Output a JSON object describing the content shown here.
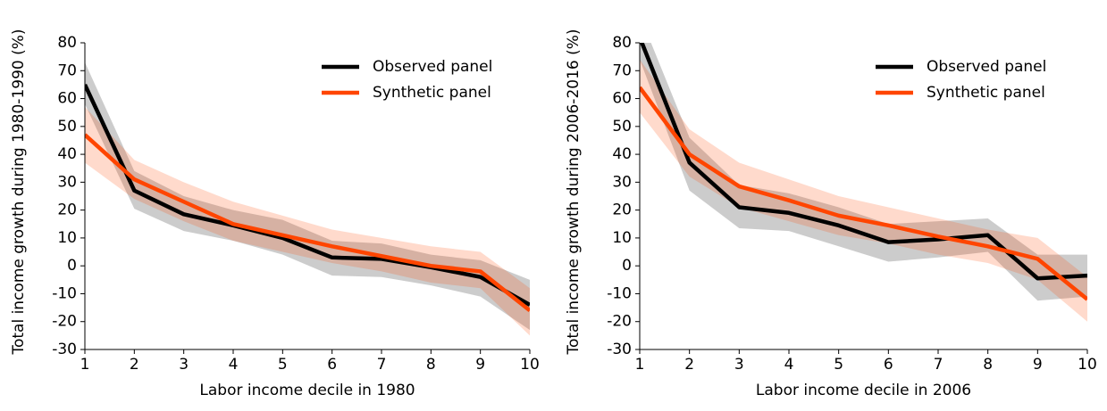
{
  "chart_data": [
    {
      "type": "line",
      "xlabel": "Labor income decile in 1980",
      "ylabel": "Total income growth during 1980-1990 (%)",
      "x": [
        1,
        2,
        3,
        4,
        5,
        6,
        7,
        8,
        9,
        10
      ],
      "xlim": [
        1,
        10
      ],
      "ylim": [
        -30,
        80
      ],
      "xticks": [
        1,
        2,
        3,
        4,
        5,
        6,
        7,
        8,
        9,
        10
      ],
      "yticks": [
        -30,
        -20,
        -10,
        0,
        10,
        20,
        30,
        40,
        50,
        60,
        70,
        80
      ],
      "legend": "upper right",
      "series": [
        {
          "name": "Observed panel",
          "color": "#000000",
          "values": [
            65,
            27,
            18.5,
            14.5,
            10,
            3,
            2.5,
            -0.5,
            -4,
            -14
          ],
          "upper": [
            73,
            34,
            25,
            20,
            16.5,
            9,
            8,
            4,
            2,
            -5
          ],
          "lower": [
            58,
            20.5,
            12.5,
            9,
            4,
            -3.5,
            -4,
            -7,
            -11,
            -23
          ]
        },
        {
          "name": "Synthetic panel",
          "color": "#ff4500",
          "values": [
            47,
            31,
            23,
            15,
            11,
            7,
            3.5,
            0,
            -2,
            -16
          ],
          "upper": [
            57,
            38,
            30,
            23,
            18,
            13,
            10,
            7,
            5,
            -8
          ],
          "lower": [
            37,
            24,
            16,
            9,
            5,
            1,
            -2,
            -6,
            -8,
            -25
          ]
        }
      ]
    },
    {
      "type": "line",
      "xlabel": "Labor income decile in 2006",
      "ylabel": "Total income growth during 2006-2016 (%)",
      "x": [
        1,
        2,
        3,
        4,
        5,
        6,
        7,
        8,
        9,
        10
      ],
      "xlim": [
        1,
        10
      ],
      "ylim": [
        -30,
        80
      ],
      "xticks": [
        1,
        2,
        3,
        4,
        5,
        6,
        7,
        8,
        9,
        10
      ],
      "yticks": [
        -30,
        -20,
        -10,
        0,
        10,
        20,
        30,
        40,
        50,
        60,
        70,
        80
      ],
      "legend": "upper right",
      "series": [
        {
          "name": "Observed panel",
          "color": "#000000",
          "values": [
            82,
            37,
            21,
            19,
            14.5,
            8.5,
            9.5,
            11,
            -4.5,
            -3.5
          ],
          "upper": [
            90,
            46,
            29,
            26,
            21,
            15,
            16,
            17,
            4,
            4
          ],
          "lower": [
            74,
            27,
            13.5,
            12.5,
            7,
            1.5,
            3,
            5,
            -12.5,
            -11
          ]
        },
        {
          "name": "Synthetic panel",
          "color": "#ff4500",
          "values": [
            64,
            40,
            28.5,
            23.5,
            18,
            14.5,
            10.5,
            7,
            2.5,
            -12
          ],
          "upper": [
            74,
            49,
            37,
            31,
            25,
            21,
            17,
            13,
            10,
            -4
          ],
          "lower": [
            55,
            32,
            21,
            16,
            11,
            8,
            4,
            1,
            -5,
            -20
          ]
        }
      ]
    }
  ]
}
